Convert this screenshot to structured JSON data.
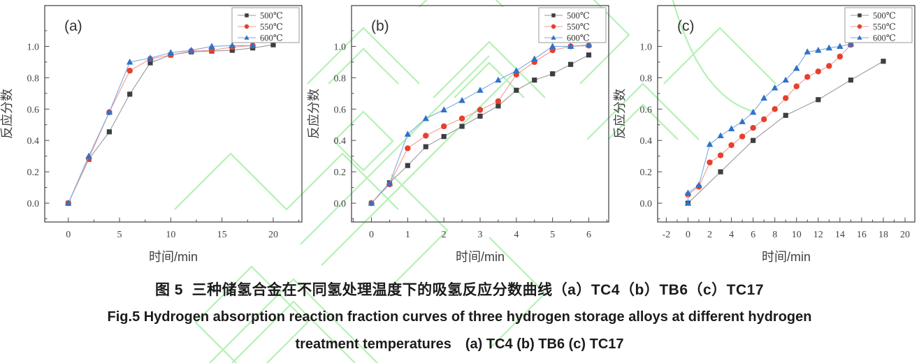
{
  "figure": {
    "caption_zh": "图 5  三种储氢合金在不同氢处理温度下的吸氢反应分数曲线（a）TC4（b）TB6（c）TC17",
    "caption_en_line1": "Fig.5 Hydrogen absorption reaction fraction curves of three hydrogen storage alloys at different hydrogen",
    "caption_en_line2": "treatment temperatures (a) TC4 (b) TB6 (c) TC17"
  },
  "colors": {
    "watermark_green": "#9bed9b",
    "axis": "#4a4a4a",
    "tick_label": "#444444",
    "series_500_marker": "#3c3f41",
    "series_500_line": "#999999",
    "series_550_marker": "#e6402e",
    "series_550_line": "#f29a93",
    "series_600_marker": "#2f72c8",
    "series_600_line": "#7fa8e0"
  },
  "chart_data": [
    {
      "type": "line",
      "panel": "(a)",
      "xlabel": "时间/min",
      "ylabel": "反应分数",
      "xlim": [
        -2.3,
        22.8
      ],
      "ylim": [
        -0.12,
        1.26
      ],
      "xticks": [
        0,
        5,
        10,
        15,
        20
      ],
      "yticks": [
        0.0,
        0.2,
        0.4,
        0.6,
        0.8,
        1.0
      ],
      "grid": false,
      "legend_position": "top-right",
      "series": [
        {
          "name": "500℃",
          "marker": "square",
          "color": "#3c3f41",
          "line_color": "#999999",
          "points": [
            [
              0,
              0
            ],
            [
              2,
              0.28
            ],
            [
              4,
              0.455
            ],
            [
              6,
              0.695
            ],
            [
              8,
              0.895
            ],
            [
              10,
              0.945
            ],
            [
              12,
              0.965
            ],
            [
              14,
              0.97
            ],
            [
              16,
              0.975
            ],
            [
              18,
              0.99
            ],
            [
              20,
              1.01
            ]
          ]
        },
        {
          "name": "550℃",
          "marker": "circle",
          "color": "#e6402e",
          "line_color": "#f29a93",
          "points": [
            [
              0,
              0
            ],
            [
              2,
              0.285
            ],
            [
              4,
              0.58
            ],
            [
              6,
              0.845
            ],
            [
              8,
              0.92
            ],
            [
              10,
              0.945
            ],
            [
              12,
              0.97
            ],
            [
              14,
              0.975
            ],
            [
              16,
              0.995
            ],
            [
              18,
              1.005
            ]
          ]
        },
        {
          "name": "600℃",
          "marker": "triangle",
          "color": "#2f72c8",
          "line_color": "#7fa8e0",
          "points": [
            [
              0,
              0
            ],
            [
              2,
              0.3
            ],
            [
              4,
              0.58
            ],
            [
              6,
              0.9
            ],
            [
              8,
              0.925
            ],
            [
              10,
              0.96
            ],
            [
              12,
              0.975
            ],
            [
              14,
              1.0
            ],
            [
              16,
              1.005
            ],
            [
              18,
              1.005
            ]
          ]
        }
      ]
    },
    {
      "type": "line",
      "panel": "(b)",
      "xlabel": "时间/min",
      "ylabel": "反应分数",
      "xlim": [
        -0.55,
        6.55
      ],
      "ylim": [
        -0.12,
        1.26
      ],
      "xticks": [
        0,
        1,
        2,
        3,
        4,
        5,
        6
      ],
      "yticks": [
        0.0,
        0.2,
        0.4,
        0.6,
        0.8,
        1.0
      ],
      "grid": false,
      "legend_position": "top-right",
      "series": [
        {
          "name": "500℃",
          "marker": "square",
          "color": "#3c3f41",
          "line_color": "#999999",
          "points": [
            [
              0,
              0
            ],
            [
              0.5,
              0.13
            ],
            [
              1,
              0.24
            ],
            [
              1.5,
              0.36
            ],
            [
              2,
              0.425
            ],
            [
              2.5,
              0.49
            ],
            [
              3,
              0.555
            ],
            [
              3.5,
              0.62
            ],
            [
              4,
              0.72
            ],
            [
              4.5,
              0.785
            ],
            [
              5,
              0.825
            ],
            [
              5.5,
              0.885
            ],
            [
              6,
              0.945
            ]
          ]
        },
        {
          "name": "550℃",
          "marker": "circle",
          "color": "#e6402e",
          "line_color": "#f29a93",
          "points": [
            [
              0,
              0
            ],
            [
              0.5,
              0.12
            ],
            [
              1,
              0.35
            ],
            [
              1.5,
              0.43
            ],
            [
              2,
              0.49
            ],
            [
              2.5,
              0.54
            ],
            [
              3,
              0.595
            ],
            [
              3.5,
              0.65
            ],
            [
              4,
              0.82
            ],
            [
              4.5,
              0.9
            ],
            [
              5,
              0.975
            ],
            [
              5.5,
              1.0
            ],
            [
              6,
              1.005
            ]
          ]
        },
        {
          "name": "600℃",
          "marker": "triangle",
          "color": "#2f72c8",
          "line_color": "#7fa8e0",
          "points": [
            [
              0,
              0
            ],
            [
              0.5,
              0.125
            ],
            [
              1,
              0.44
            ],
            [
              1.5,
              0.54
            ],
            [
              2,
              0.595
            ],
            [
              2.5,
              0.655
            ],
            [
              3,
              0.72
            ],
            [
              3.5,
              0.785
            ],
            [
              4,
              0.845
            ],
            [
              4.5,
              0.92
            ],
            [
              5,
              1.0
            ],
            [
              5.5,
              1.0
            ],
            [
              6,
              1.01
            ]
          ]
        }
      ]
    },
    {
      "type": "line",
      "panel": "(c)",
      "xlabel": "时间/min",
      "ylabel": "反应分数",
      "xlim": [
        -2.8,
        20.9
      ],
      "ylim": [
        -0.12,
        1.26
      ],
      "xticks": [
        -2,
        0,
        2,
        4,
        6,
        8,
        10,
        12,
        14,
        16,
        18,
        20
      ],
      "yticks": [
        0.0,
        0.2,
        0.4,
        0.6,
        0.8,
        1.0
      ],
      "grid": false,
      "legend_position": "top-right",
      "series": [
        {
          "name": "500℃",
          "marker": "square",
          "color": "#3c3f41",
          "line_color": "#999999",
          "points": [
            [
              0,
              0
            ],
            [
              3,
              0.2
            ],
            [
              6,
              0.4
            ],
            [
              9,
              0.56
            ],
            [
              12,
              0.66
            ],
            [
              15,
              0.785
            ],
            [
              18,
              0.905
            ]
          ]
        },
        {
          "name": "550℃",
          "marker": "circle",
          "color": "#e6402e",
          "line_color": "#f29a93",
          "points": [
            [
              0,
              0.055
            ],
            [
              1,
              0.105
            ],
            [
              2,
              0.26
            ],
            [
              3,
              0.305
            ],
            [
              4,
              0.37
            ],
            [
              5,
              0.425
            ],
            [
              6,
              0.48
            ],
            [
              7,
              0.535
            ],
            [
              8,
              0.6
            ],
            [
              9,
              0.67
            ],
            [
              10,
              0.745
            ],
            [
              11,
              0.805
            ],
            [
              12,
              0.84
            ],
            [
              13,
              0.875
            ],
            [
              14,
              0.935
            ],
            [
              15,
              1.01
            ]
          ]
        },
        {
          "name": "600℃",
          "marker": "triangle",
          "color": "#2f72c8",
          "line_color": "#7fa8e0",
          "points": [
            [
              0,
              0
            ],
            [
              0,
              0.065
            ],
            [
              1,
              0.115
            ],
            [
              2,
              0.375
            ],
            [
              3,
              0.43
            ],
            [
              4,
              0.475
            ],
            [
              5,
              0.52
            ],
            [
              6,
              0.58
            ],
            [
              7,
              0.67
            ],
            [
              8,
              0.735
            ],
            [
              9,
              0.785
            ],
            [
              10,
              0.86
            ],
            [
              11,
              0.965
            ],
            [
              12,
              0.975
            ],
            [
              13,
              0.99
            ],
            [
              14,
              1.0
            ],
            [
              15,
              1.015
            ]
          ]
        }
      ]
    }
  ]
}
